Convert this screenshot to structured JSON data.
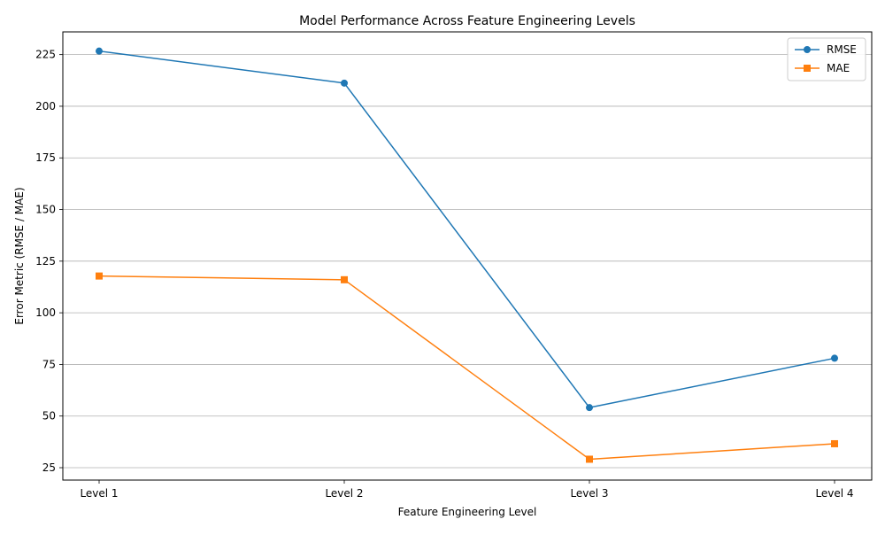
{
  "chart_data": {
    "type": "line",
    "title": "Model Performance Across Feature Engineering Levels",
    "xlabel": "Feature Engineering Level",
    "ylabel": "Error Metric (RMSE / MAE)",
    "categories": [
      "Level 1",
      "Level 2",
      "Level 3",
      "Level 4"
    ],
    "ylim": [
      19,
      236
    ],
    "yticks": [
      25,
      50,
      75,
      100,
      125,
      150,
      175,
      200,
      225
    ],
    "grid": "horizontal",
    "legend_position": "top-right",
    "series": [
      {
        "name": "RMSE",
        "values": [
          226.7,
          211.2,
          54.1,
          78.0
        ],
        "color": "#1f77b4",
        "marker": "circle"
      },
      {
        "name": "MAE",
        "values": [
          117.8,
          116.0,
          29.1,
          36.6
        ],
        "color": "#ff7f0e",
        "marker": "square"
      }
    ]
  }
}
